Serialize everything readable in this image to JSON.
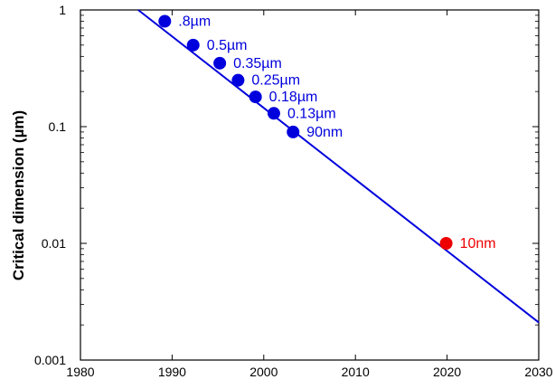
{
  "chart_data": {
    "type": "scatter",
    "title": "",
    "xlabel": "",
    "ylabel": "Critical dimension (µm)",
    "xlim": [
      1980,
      2030
    ],
    "ylim": [
      0.001,
      1
    ],
    "yscale": "log",
    "grid": false,
    "x_ticks": [
      "1980",
      "1990",
      "2000",
      "2010",
      "2020",
      "2030"
    ],
    "y_ticks": [
      "0.001",
      "0.01",
      "0.1",
      "1"
    ],
    "series": [
      {
        "color": "#0000dd",
        "points": [
          {
            "x": 1989.2,
            "y": 0.8,
            "label": ".8µm"
          },
          {
            "x": 1992.3,
            "y": 0.5,
            "label": "0.5µm"
          },
          {
            "x": 1995.2,
            "y": 0.35,
            "label": "0.35µm"
          },
          {
            "x": 1997.2,
            "y": 0.25,
            "label": "0.25µm"
          },
          {
            "x": 1999.1,
            "y": 0.18,
            "label": "0.18µm"
          },
          {
            "x": 2001.1,
            "y": 0.13,
            "label": "0.13µm"
          },
          {
            "x": 2003.2,
            "y": 0.09,
            "label": "90nm"
          }
        ]
      },
      {
        "color": "#ee0000",
        "points": [
          {
            "x": 2019.9,
            "y": 0.01,
            "label": "10nm"
          }
        ]
      }
    ],
    "trend_line": {
      "color": "#0000dd",
      "from": {
        "x": 1986.3,
        "y": 1.0
      },
      "to": {
        "x": 2030,
        "y": 0.0021
      }
    }
  }
}
